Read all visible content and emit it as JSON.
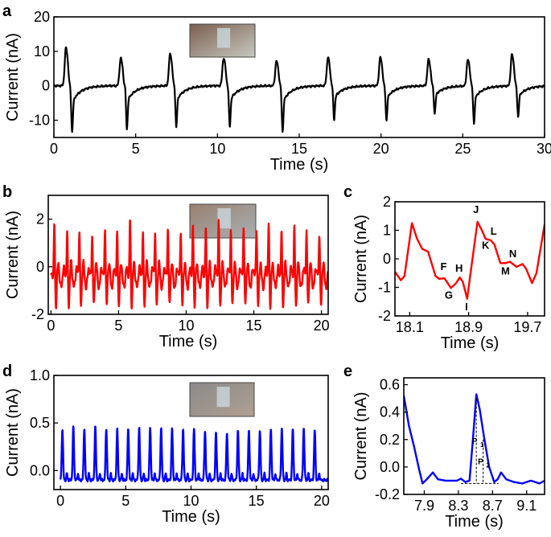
{
  "chart_data": [
    {
      "panel": "a",
      "type": "line",
      "xlabel": "Time (s)",
      "ylabel": "Current (nA)",
      "xlim": [
        0,
        30
      ],
      "ylim": [
        -15,
        20
      ],
      "xticks": [
        0,
        5,
        10,
        15,
        20,
        25,
        30
      ],
      "yticks": [
        -10,
        0,
        10,
        20
      ],
      "color": "#000000",
      "inset": "photo of sensor on skin",
      "beats": {
        "times": [
          0.73,
          4.08,
          7.1,
          10.37,
          13.6,
          16.75,
          19.95,
          22.9,
          25.3,
          28.0
        ],
        "peaks": [
          10.4,
          7.6,
          8.8,
          7.6,
          6.8,
          7.8,
          7.8,
          7.2,
          7.2,
          8.6
        ],
        "troughs": [
          -8.8,
          -8.2,
          -7.8,
          -7.8,
          -8.6,
          -6.4,
          -6.6,
          -5.2,
          -7.0,
          -5.8
        ]
      }
    },
    {
      "panel": "b",
      "type": "line",
      "xlabel": "Time (s)",
      "ylabel": "Current (nA)",
      "xlim": [
        -0.2,
        20.5
      ],
      "ylim": [
        -2,
        3
      ],
      "xticks": [
        0,
        5,
        10,
        15,
        20
      ],
      "yticks": [
        -2,
        0,
        2
      ],
      "color": "#ff0000",
      "inset": "photo of sensor on chest",
      "beats": {
        "times": [
          0.25,
          1.2,
          2.1,
          3.05,
          4.0,
          4.9,
          5.85,
          6.8,
          7.7,
          8.65,
          9.6,
          10.5,
          11.45,
          12.4,
          13.3,
          14.25,
          15.2,
          16.1,
          17.05,
          18.0,
          18.9,
          19.85
        ],
        "peaks": [
          1.7,
          1.3,
          1.4,
          1.2,
          1.5,
          1.3,
          1.9,
          1.2,
          1.3,
          1.5,
          1.4,
          1.6,
          1.5,
          1.7,
          1.4,
          1.6,
          1.5,
          1.7,
          1.3,
          1.5,
          1.4,
          1.3
        ]
      }
    },
    {
      "panel": "c",
      "type": "line",
      "xlabel": "Time (s)",
      "ylabel": "Current (nA)",
      "xlim": [
        17.9,
        19.93
      ],
      "ylim": [
        -2,
        2
      ],
      "xticks": [
        18.1,
        18.9,
        19.7
      ],
      "yticks": [
        -2,
        -1,
        0,
        1,
        2
      ],
      "color": "#ff0000",
      "points": [
        [
          17.9,
          -0.45
        ],
        [
          17.98,
          -0.75
        ],
        [
          18.03,
          -0.6
        ],
        [
          18.13,
          1.25
        ],
        [
          18.2,
          0.7
        ],
        [
          18.27,
          0.35
        ],
        [
          18.35,
          0.25
        ],
        [
          18.45,
          -0.6
        ],
        [
          18.5,
          -0.7
        ],
        [
          18.57,
          -0.68
        ],
        [
          18.66,
          -1.02
        ],
        [
          18.73,
          -0.85
        ],
        [
          18.78,
          -0.65
        ],
        [
          18.82,
          -0.8
        ],
        [
          18.88,
          -1.4
        ],
        [
          18.92,
          -0.6
        ],
        [
          19.02,
          1.3
        ],
        [
          19.08,
          1.0
        ],
        [
          19.13,
          0.7
        ],
        [
          19.2,
          0.65
        ],
        [
          19.25,
          0.5
        ],
        [
          19.33,
          -0.15
        ],
        [
          19.4,
          -0.15
        ],
        [
          19.46,
          -0.1
        ],
        [
          19.55,
          -0.28
        ],
        [
          19.63,
          -0.18
        ],
        [
          19.68,
          -0.35
        ],
        [
          19.76,
          -0.85
        ],
        [
          19.82,
          -0.5
        ],
        [
          19.93,
          1.2
        ]
      ],
      "annotations": [
        {
          "text": "F",
          "x": 18.56,
          "y": -0.4
        },
        {
          "text": "G",
          "x": 18.63,
          "y": -1.4
        },
        {
          "text": "H",
          "x": 18.77,
          "y": -0.45
        },
        {
          "text": "I",
          "x": 18.87,
          "y": -1.8
        },
        {
          "text": "J",
          "x": 19.0,
          "y": 1.6
        },
        {
          "text": "K",
          "x": 19.13,
          "y": 0.35
        },
        {
          "text": "L",
          "x": 19.24,
          "y": 0.85
        },
        {
          "text": "M",
          "x": 19.4,
          "y": -0.55
        },
        {
          "text": "N",
          "x": 19.5,
          "y": 0.05
        }
      ]
    },
    {
      "panel": "d",
      "type": "line",
      "xlabel": "Time (s)",
      "ylabel": "Current (nA)",
      "xlim": [
        -0.5,
        20.5
      ],
      "ylim": [
        -0.2,
        1.0
      ],
      "xticks": [
        0,
        5,
        10,
        15,
        20
      ],
      "yticks": [
        0.0,
        0.5,
        1.0
      ],
      "color": "#0000ff",
      "inset": "photo of sensor on wrist",
      "beats": {
        "times": [
          0.15,
          0.99,
          1.83,
          2.67,
          3.51,
          4.35,
          5.19,
          6.03,
          6.87,
          7.71,
          8.55,
          9.39,
          10.23,
          11.07,
          11.91,
          12.75,
          13.59,
          14.43,
          15.27,
          16.11,
          16.95,
          17.79,
          18.63,
          19.47
        ],
        "peaks": [
          0.54,
          0.56,
          0.55,
          0.56,
          0.55,
          0.54,
          0.55,
          0.55,
          0.56,
          0.55,
          0.55,
          0.54,
          0.54,
          0.52,
          0.5,
          0.5,
          0.52,
          0.53,
          0.52,
          0.54,
          0.55,
          0.54,
          0.55,
          0.53
        ]
      }
    },
    {
      "panel": "e",
      "type": "line",
      "xlabel": "Time (s)",
      "ylabel": "Current (nA)",
      "xlim": [
        7.66,
        9.31
      ],
      "ylim": [
        -0.2,
        0.65
      ],
      "xticks": [
        7.9,
        8.3,
        8.7,
        9.1
      ],
      "yticks": [
        -0.2,
        0.0,
        0.2,
        0.4,
        0.6
      ],
      "color": "#0000ff",
      "points": [
        [
          7.66,
          0.52
        ],
        [
          7.72,
          0.3
        ],
        [
          7.78,
          0.15
        ],
        [
          7.84,
          -0.02
        ],
        [
          7.88,
          -0.12
        ],
        [
          7.93,
          -0.09
        ],
        [
          8.0,
          -0.04
        ],
        [
          8.06,
          -0.09
        ],
        [
          8.15,
          -0.1
        ],
        [
          8.28,
          -0.1
        ],
        [
          8.33,
          -0.085
        ],
        [
          8.38,
          -0.11
        ],
        [
          8.43,
          -0.1
        ],
        [
          8.47,
          0.2
        ],
        [
          8.51,
          0.53
        ],
        [
          8.55,
          0.42
        ],
        [
          8.6,
          0.22
        ],
        [
          8.66,
          0.0
        ],
        [
          8.72,
          -0.11
        ],
        [
          8.76,
          -0.09
        ],
        [
          8.8,
          -0.04
        ],
        [
          8.86,
          -0.09
        ],
        [
          8.95,
          -0.11
        ],
        [
          9.05,
          -0.12
        ],
        [
          9.15,
          -0.1
        ],
        [
          9.25,
          -0.12
        ],
        [
          9.31,
          -0.1
        ]
      ],
      "annotations": [
        {
          "text": "P",
          "sub": "1",
          "x": 8.49,
          "y": 0.17
        },
        {
          "text": "P",
          "sub": "2",
          "x": 8.56,
          "y": 0.02
        }
      ],
      "guides": {
        "baseline": -0.12,
        "baseline_range": [
          8.33,
          8.77
        ],
        "p1_time": 8.51,
        "p2_time": 8.59
      }
    }
  ]
}
